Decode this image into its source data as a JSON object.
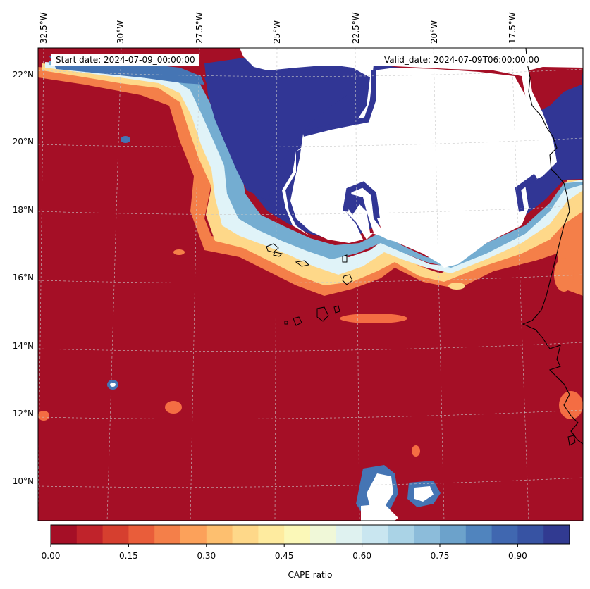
{
  "map": {
    "start_date": "Start date: 2024-07-09_00:00:00",
    "valid_date": "Valid_date: 2024-07-09T06:00:00.00",
    "longitude_labels": [
      "32.5°W",
      "30°W",
      "27.5°W",
      "25°W",
      "22.5°W",
      "20°W",
      "17.5°W"
    ],
    "latitude_labels": [
      "22°N",
      "20°N",
      "18°N",
      "16°N",
      "14°N",
      "12°N",
      "10°N"
    ],
    "extent": {
      "lon_min": -32.6,
      "lon_max": -15.2,
      "lat_min": 8.9,
      "lat_max": 22.8
    },
    "gridlines": true,
    "coastlines": true,
    "field": "CAPE ratio",
    "masked_region": "white (no data) over northwest Africa / Sahara interior"
  },
  "colorbar": {
    "label": "CAPE ratio",
    "tick_labels": [
      "0.00",
      "0.15",
      "0.30",
      "0.45",
      "0.60",
      "0.75",
      "0.90"
    ],
    "ticks": [
      0.0,
      0.15,
      0.3,
      0.45,
      0.6,
      0.75,
      0.9
    ],
    "range": [
      0.0,
      1.0
    ],
    "levels": 20,
    "colormap": "RdYlBu",
    "colors": [
      "#a50f26",
      "#c0232b",
      "#d63f2f",
      "#e95d3a",
      "#f47f49",
      "#fca15a",
      "#fdbf6f",
      "#fed889",
      "#feeb9f",
      "#fbf8b8",
      "#f0f8d8",
      "#dff2f0",
      "#c9e6f0",
      "#aad3e6",
      "#8cbcda",
      "#6ca2cb",
      "#5084be",
      "#4067b0",
      "#3753a3",
      "#313a91"
    ]
  }
}
